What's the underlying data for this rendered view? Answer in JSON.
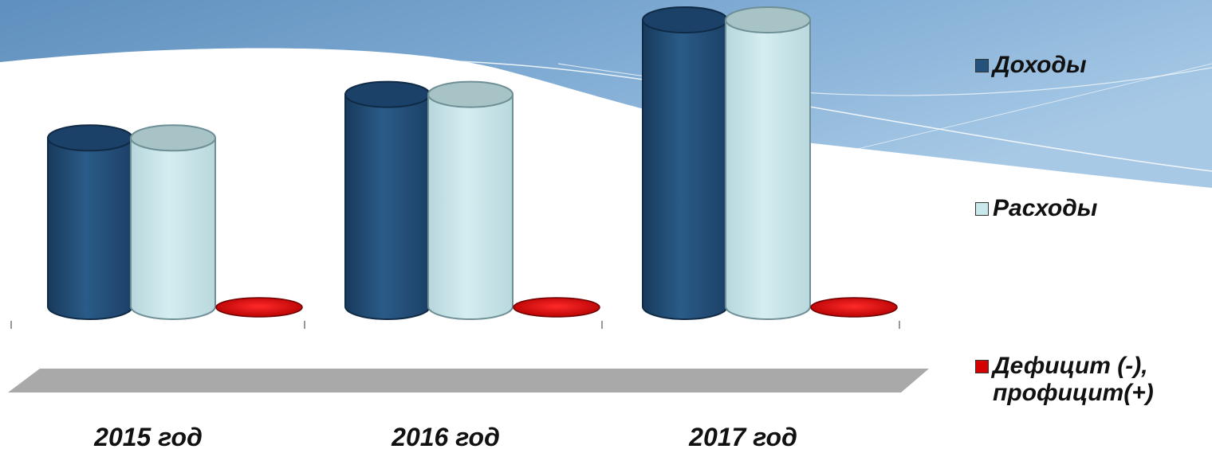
{
  "chart_data": {
    "type": "bar",
    "categories": [
      "2015 год",
      "2016 год",
      "2017 год"
    ],
    "series": [
      {
        "name": "Доходы",
        "values": [
          217,
          273,
          369
        ],
        "color": "#24527c"
      },
      {
        "name": "Расходы",
        "values": [
          217,
          273,
          369
        ],
        "color": "#c9e8ec"
      },
      {
        "name": "Дефицит (-),\nпрофицит(+)",
        "values": [
          -2,
          -2,
          -2
        ],
        "color": "#d50000"
      }
    ],
    "style": "3d-cylinder",
    "legend_position": "right",
    "grid": false,
    "ylim": [
      0,
      369
    ]
  }
}
